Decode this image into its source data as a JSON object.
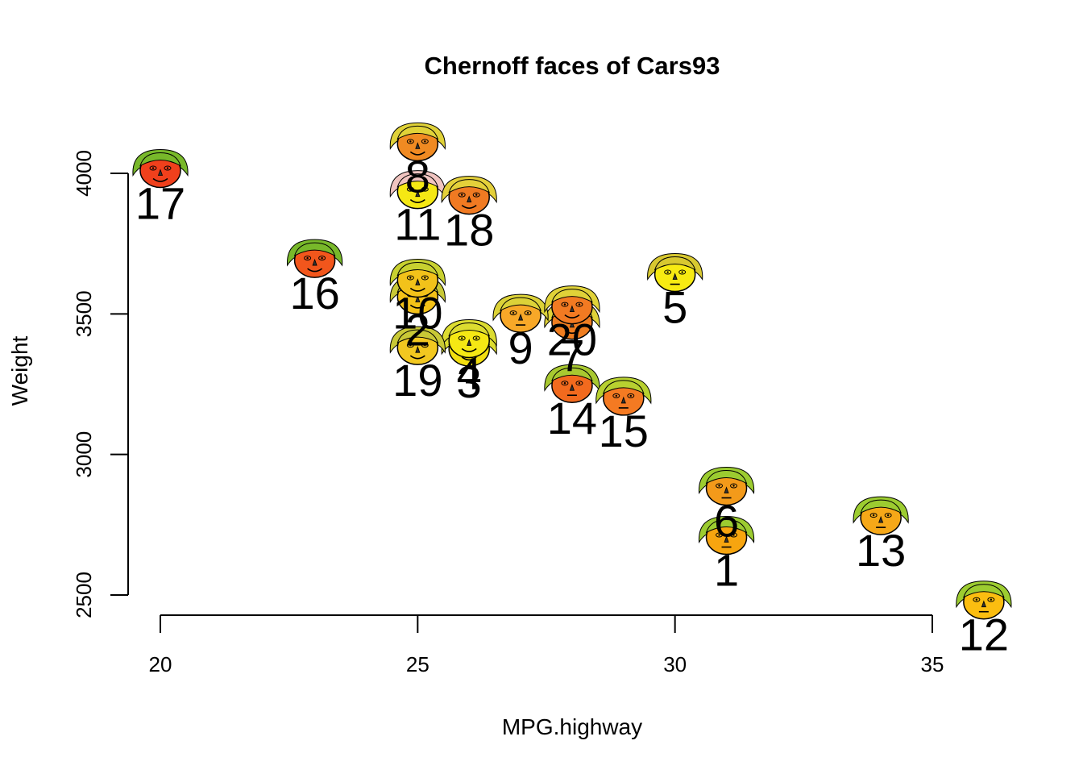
{
  "chart_data": {
    "type": "scatter",
    "title": "Chernoff faces of Cars93",
    "xlabel": "MPG.highway",
    "ylabel": "Weight",
    "xlim": [
      20,
      35
    ],
    "ylim": [
      2500,
      4000
    ],
    "x_ticks": [
      20,
      25,
      30,
      35
    ],
    "y_ticks": [
      2500,
      3000,
      3500,
      4000
    ],
    "grid": false,
    "marker": "chernoff-face",
    "points": [
      {
        "label": "1",
        "x": 31,
        "y": 2705,
        "face": "#f7a50f",
        "hair": "#9ccc30",
        "mouth": "flat"
      },
      {
        "label": "2",
        "x": 25,
        "y": 3560,
        "face": "#f4c218",
        "hair": "#c8c836",
        "mouth": "smile"
      },
      {
        "label": "3",
        "x": 26,
        "y": 3375,
        "face": "#f2de10",
        "hair": "#dcdc30",
        "mouth": "smile"
      },
      {
        "label": "4",
        "x": 26,
        "y": 3405,
        "face": "#f5e814",
        "hair": "#dcdc30",
        "mouth": "smile"
      },
      {
        "label": "5",
        "x": 30,
        "y": 3640,
        "face": "#f7ea12",
        "hair": "#d8c830",
        "mouth": "flat"
      },
      {
        "label": "6",
        "x": 31,
        "y": 2880,
        "face": "#f39a1a",
        "hair": "#9ccc30",
        "mouth": "flat"
      },
      {
        "label": "7",
        "x": 28,
        "y": 3470,
        "face": "#ef7d20",
        "hair": "#e0d238",
        "mouth": "smile"
      },
      {
        "label": "8",
        "x": 25,
        "y": 4105,
        "face": "#f08a22",
        "hair": "#e0d238",
        "mouth": "smile"
      },
      {
        "label": "9",
        "x": 27,
        "y": 3495,
        "face": "#f8a828",
        "hair": "#dcd238",
        "mouth": "flat"
      },
      {
        "label": "10",
        "x": 25,
        "y": 3620,
        "face": "#f2c21a",
        "hair": "#c8d030",
        "mouth": "smile"
      },
      {
        "label": "11",
        "x": 25,
        "y": 3935,
        "face": "#f5e814",
        "hair": "#f0c4c0",
        "mouth": "smile"
      },
      {
        "label": "12",
        "x": 36,
        "y": 2475,
        "face": "#fbbd10",
        "hair": "#9ccc30",
        "mouth": "flat"
      },
      {
        "label": "13",
        "x": 34,
        "y": 2775,
        "face": "#f6a818",
        "hair": "#9ccc30",
        "mouth": "flat"
      },
      {
        "label": "14",
        "x": 28,
        "y": 3245,
        "face": "#f26a1e",
        "hair": "#a8c830",
        "mouth": "flat"
      },
      {
        "label": "15",
        "x": 29,
        "y": 3200,
        "face": "#f47a22",
        "hair": "#b8d030",
        "mouth": "flat"
      },
      {
        "label": "16",
        "x": 23,
        "y": 3690,
        "face": "#f2561c",
        "hair": "#78b82a",
        "mouth": "smile"
      },
      {
        "label": "17",
        "x": 20,
        "y": 4010,
        "face": "#f0401c",
        "hair": "#78b82a",
        "mouth": "smile"
      },
      {
        "label": "18",
        "x": 26,
        "y": 3915,
        "face": "#f07a22",
        "hair": "#e4d03a",
        "mouth": "smile"
      },
      {
        "label": "19",
        "x": 25,
        "y": 3380,
        "face": "#f2c820",
        "hair": "#c8c836",
        "mouth": "smile"
      },
      {
        "label": "20",
        "x": 28,
        "y": 3525,
        "face": "#f27a22",
        "hair": "#e0d238",
        "mouth": "smile"
      }
    ]
  }
}
